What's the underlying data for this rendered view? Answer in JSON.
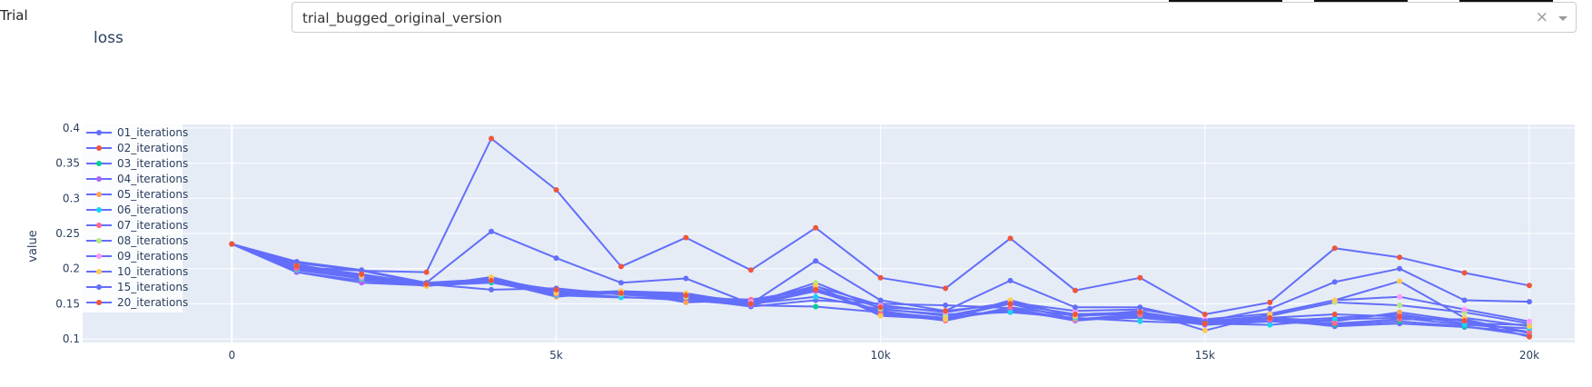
{
  "trial": {
    "label": "Trial",
    "selected": "trial_bugged_original_version",
    "clear_glyph": "×",
    "icons": [
      "close-icon",
      "chevron-down-icon"
    ]
  },
  "chart_data": {
    "type": "line",
    "title": "loss",
    "xlabel": "",
    "ylabel": "value",
    "xlim": [
      -2300,
      20700
    ],
    "ylim": [
      0.095,
      0.405
    ],
    "x_ticks": [
      {
        "value": 0,
        "label": "0"
      },
      {
        "value": 5000,
        "label": "5k"
      },
      {
        "value": 10000,
        "label": "10k"
      },
      {
        "value": 15000,
        "label": "15k"
      },
      {
        "value": 20000,
        "label": "20k"
      }
    ],
    "y_ticks": [
      {
        "value": 0.1,
        "label": "0.1"
      },
      {
        "value": 0.15,
        "label": "0.15"
      },
      {
        "value": 0.2,
        "label": "0.2"
      },
      {
        "value": 0.25,
        "label": "0.25"
      },
      {
        "value": 0.3,
        "label": "0.3"
      },
      {
        "value": 0.35,
        "label": "0.35"
      },
      {
        "value": 0.4,
        "label": "0.4"
      }
    ],
    "grid": true,
    "legend": "top-left",
    "line_color": "#636efa",
    "x": [
      0,
      1000,
      2000,
      3000,
      4000,
      5000,
      6000,
      7000,
      8000,
      9000,
      10000,
      11000,
      12000,
      13000,
      14000,
      15000,
      16000,
      17000,
      18000,
      19000,
      20000
    ],
    "series": [
      {
        "name": "01_iterations",
        "marker_color": "#636efa",
        "values": [
          0.235,
          0.208,
          0.197,
          0.178,
          0.17,
          0.172,
          0.163,
          0.158,
          0.146,
          0.155,
          0.15,
          0.148,
          0.144,
          0.127,
          0.132,
          0.123,
          0.128,
          0.118,
          0.122,
          0.117,
          0.11
        ]
      },
      {
        "name": "02_iterations",
        "marker_color": "#ef553b",
        "values": [
          0.235,
          0.202,
          0.197,
          0.195,
          0.385,
          0.312,
          0.203,
          0.244,
          0.198,
          0.258,
          0.187,
          0.172,
          0.243,
          0.169,
          0.187,
          0.135,
          0.152,
          0.229,
          0.216,
          0.194,
          0.176
        ]
      },
      {
        "name": "03_iterations",
        "marker_color": "#00cc96",
        "values": [
          0.235,
          0.195,
          0.183,
          0.176,
          0.18,
          0.165,
          0.16,
          0.155,
          0.148,
          0.146,
          0.138,
          0.13,
          0.14,
          0.128,
          0.13,
          0.122,
          0.125,
          0.12,
          0.125,
          0.118,
          0.105
        ]
      },
      {
        "name": "04_iterations",
        "marker_color": "#ab63fa",
        "values": [
          0.235,
          0.195,
          0.18,
          0.176,
          0.182,
          0.163,
          0.165,
          0.16,
          0.148,
          0.168,
          0.14,
          0.128,
          0.142,
          0.126,
          0.133,
          0.12,
          0.125,
          0.13,
          0.135,
          0.122,
          0.12
        ]
      },
      {
        "name": "05_iterations",
        "marker_color": "#ffa15a",
        "values": [
          0.235,
          0.203,
          0.185,
          0.177,
          0.183,
          0.16,
          0.168,
          0.152,
          0.155,
          0.172,
          0.135,
          0.13,
          0.15,
          0.128,
          0.135,
          0.123,
          0.13,
          0.125,
          0.138,
          0.125,
          0.11
        ]
      },
      {
        "name": "06_iterations",
        "marker_color": "#19d3f3",
        "values": [
          0.235,
          0.198,
          0.186,
          0.178,
          0.181,
          0.162,
          0.159,
          0.158,
          0.15,
          0.16,
          0.142,
          0.135,
          0.138,
          0.13,
          0.125,
          0.122,
          0.12,
          0.128,
          0.13,
          0.12,
          0.115
        ]
      },
      {
        "name": "07_iterations",
        "marker_color": "#ff6692",
        "values": [
          0.235,
          0.2,
          0.188,
          0.177,
          0.184,
          0.164,
          0.168,
          0.158,
          0.156,
          0.17,
          0.137,
          0.126,
          0.145,
          0.133,
          0.136,
          0.124,
          0.128,
          0.122,
          0.128,
          0.128,
          0.108
        ]
      },
      {
        "name": "08_iterations",
        "marker_color": "#b6e880",
        "values": [
          0.235,
          0.204,
          0.19,
          0.18,
          0.185,
          0.166,
          0.164,
          0.16,
          0.15,
          0.18,
          0.143,
          0.133,
          0.15,
          0.135,
          0.138,
          0.125,
          0.133,
          0.152,
          0.148,
          0.138,
          0.122
        ]
      },
      {
        "name": "09_iterations",
        "marker_color": "#ff97ff",
        "values": [
          0.235,
          0.205,
          0.188,
          0.178,
          0.186,
          0.168,
          0.166,
          0.163,
          0.153,
          0.175,
          0.148,
          0.138,
          0.152,
          0.14,
          0.142,
          0.128,
          0.136,
          0.155,
          0.16,
          0.142,
          0.125
        ]
      },
      {
        "name": "10_iterations",
        "marker_color": "#fecb52",
        "values": [
          0.235,
          0.206,
          0.19,
          0.175,
          0.188,
          0.165,
          0.168,
          0.165,
          0.15,
          0.176,
          0.133,
          0.128,
          0.155,
          0.132,
          0.14,
          0.112,
          0.135,
          0.155,
          0.182,
          0.13,
          0.118
        ]
      },
      {
        "name": "15_iterations",
        "marker_color": "#636efa",
        "values": [
          0.235,
          0.21,
          0.198,
          0.18,
          0.253,
          0.215,
          0.18,
          0.186,
          0.15,
          0.211,
          0.155,
          0.14,
          0.183,
          0.145,
          0.145,
          0.125,
          0.143,
          0.181,
          0.2,
          0.155,
          0.153
        ]
      },
      {
        "name": "20_iterations",
        "marker_color": "#ef553b",
        "values": [
          0.235,
          0.204,
          0.192,
          0.178,
          0.183,
          0.17,
          0.165,
          0.162,
          0.15,
          0.17,
          0.145,
          0.14,
          0.15,
          0.135,
          0.138,
          0.122,
          0.13,
          0.135,
          0.132,
          0.126,
          0.103
        ]
      }
    ]
  }
}
